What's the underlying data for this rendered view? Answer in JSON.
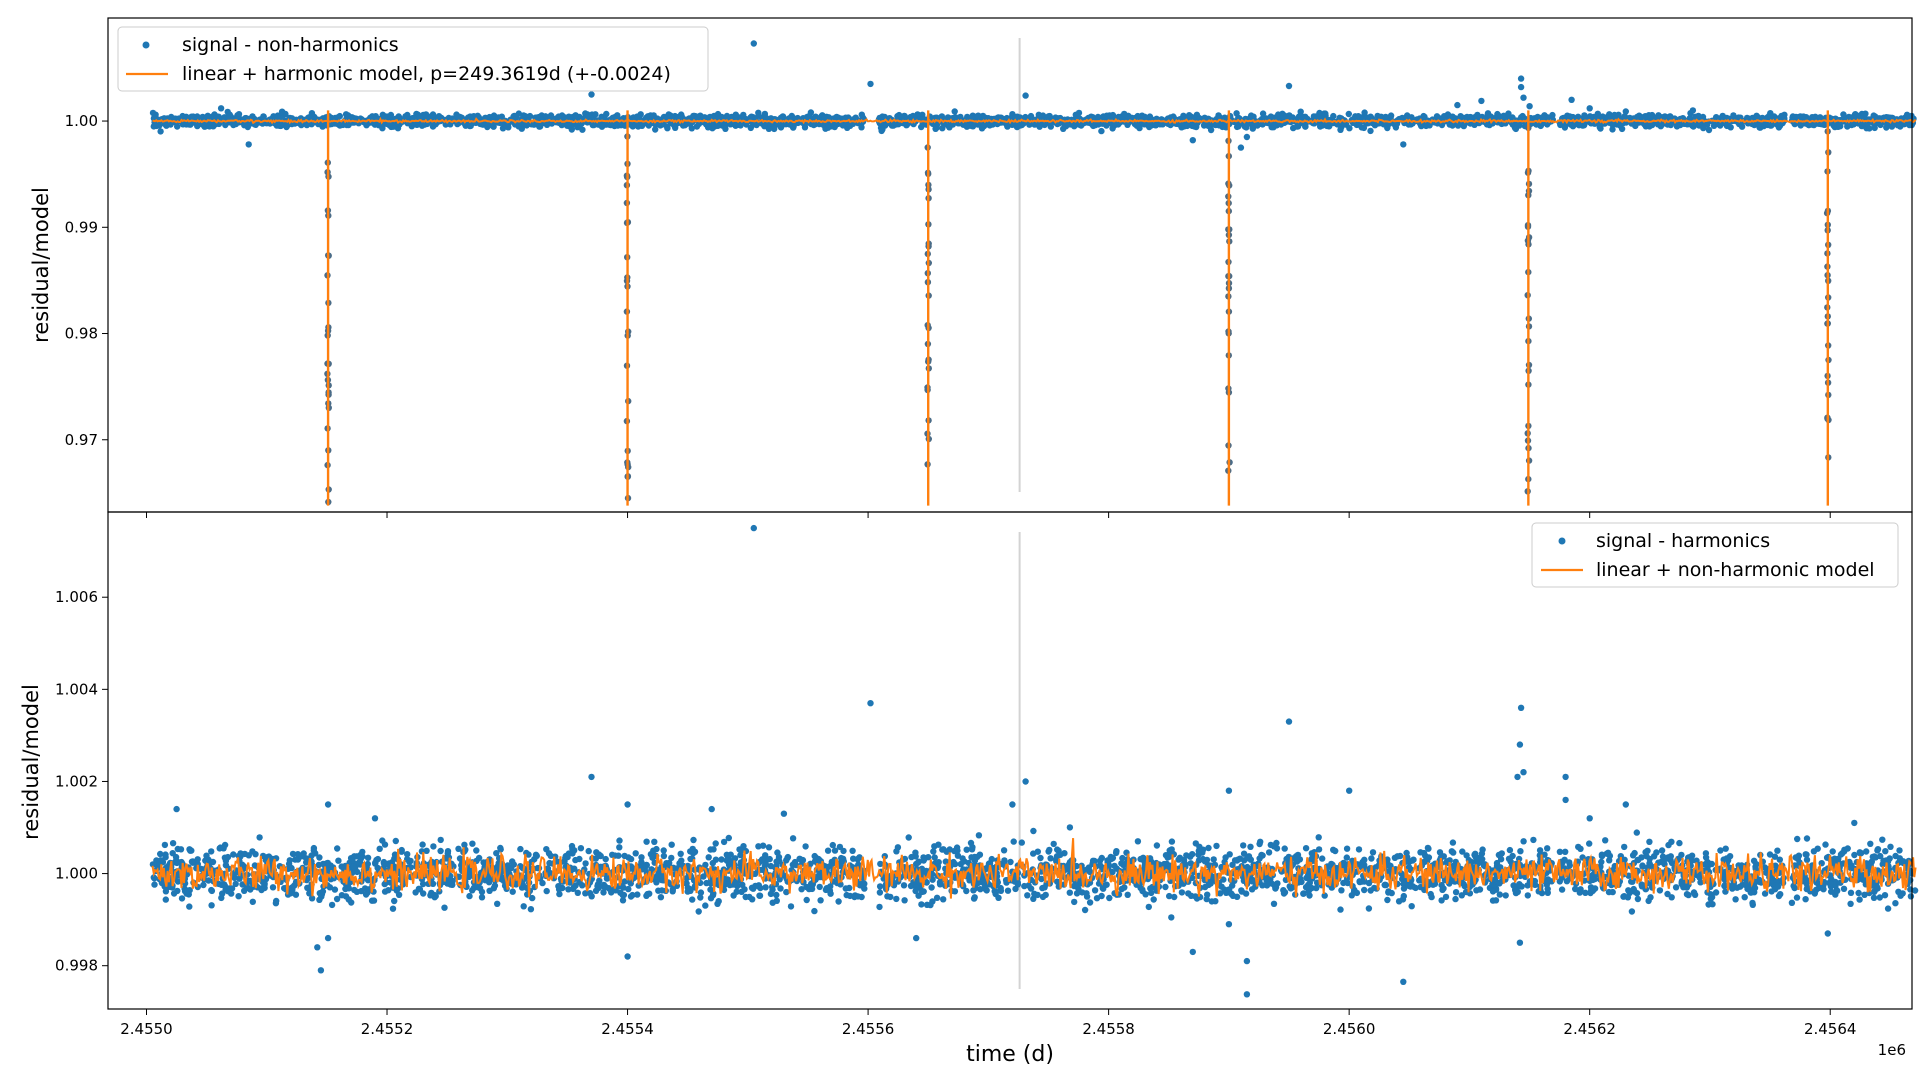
{
  "figure": {
    "xlabel": "time (d)",
    "x_offset_label": "1e6"
  },
  "colors": {
    "signal": "#1f77b4",
    "model": "#ff7f0e",
    "marker_line": "#d3d3d3",
    "axes": "#000000",
    "legend_border": "#cccccc"
  },
  "chart_data": [
    {
      "type": "scatter",
      "panel": "top",
      "ylabel": "residual/model",
      "xlim": [
        2454928,
        2456428
      ],
      "ylim": [
        0.9632,
        1.0097
      ],
      "xticks": [
        2454960,
        2455160,
        2455360,
        2455560,
        2455760,
        2455960,
        2456160,
        2456360
      ],
      "xtick_labels": [
        "",
        "",
        "",
        "",
        "",
        "",
        "",
        ""
      ],
      "yticks": [
        0.97,
        0.98,
        0.99,
        1.0
      ],
      "ytick_labels": [
        "0.97",
        "0.98",
        "0.99",
        "1.00"
      ],
      "legend": {
        "position": "upper left",
        "entries": [
          {
            "label": "signal - non-harmonics",
            "marker": "dot",
            "color": "#1f77b4"
          },
          {
            "label": "linear + harmonic model, p=249.3619d (+-0.0024)",
            "marker": "line",
            "color": "#ff7f0e"
          }
        ]
      },
      "series": [
        {
          "name": "signal - non-harmonics",
          "kind": "scatter",
          "baseline": 1.0,
          "time_segments": [
            [
              2454965,
              2455557
            ],
            [
              2455569,
              2455637
            ],
            [
              2455637,
              2456130
            ],
            [
              2456135,
              2456322
            ],
            [
              2456328,
              2456431
            ]
          ],
          "dip_times": [
            2455111,
            2455360,
            2455610,
            2455860,
            2456109,
            2456358
          ],
          "dip_depth": 0.9636,
          "outliers": [
            [
              2455022,
              1.0012
            ],
            [
              2455045,
              0.9978
            ],
            [
              2455330,
              1.0025
            ],
            [
              2455465,
              1.0073
            ],
            [
              2455562,
              1.0035
            ],
            [
              2455632,
              1.0009
            ],
            [
              2455691,
              1.0024
            ],
            [
              2455830,
              0.9982
            ],
            [
              2455870,
              0.9975
            ],
            [
              2455875,
              0.9985
            ],
            [
              2455910,
              1.0033
            ],
            [
              2456005,
              0.9978
            ],
            [
              2456050,
              1.0015
            ],
            [
              2456070,
              1.0019
            ],
            [
              2456103,
              1.004
            ],
            [
              2456103,
              1.0032
            ],
            [
              2456105,
              1.0022
            ],
            [
              2456110,
              1.0014
            ],
            [
              2456145,
              1.002
            ],
            [
              2456160,
              1.0012
            ],
            [
              2456190,
              1.0009
            ]
          ]
        },
        {
          "name": "linear + harmonic model, p=249.3619d (+-0.0024)",
          "kind": "line",
          "baseline": 1.0,
          "dip_times": [
            2455111,
            2455360,
            2455610,
            2455860,
            2456109,
            2456358
          ],
          "dip_depth": 0.9638
        }
      ],
      "vertical_marker_x": 2455686
    },
    {
      "type": "scatter",
      "panel": "bottom",
      "ylabel": "residual/model",
      "xlim": [
        2454928,
        2456428
      ],
      "ylim": [
        0.99706,
        1.00785
      ],
      "xticks": [
        2454960,
        2455160,
        2455360,
        2455560,
        2455760,
        2455960,
        2456160,
        2456360
      ],
      "xtick_labels": [
        "2.4550",
        "2.4552",
        "2.4554",
        "2.4556",
        "2.4558",
        "2.4560",
        "2.4562",
        "2.4564"
      ],
      "yticks": [
        0.998,
        1.0,
        1.002,
        1.004,
        1.006
      ],
      "ytick_labels": [
        "0.998",
        "1.000",
        "1.002",
        "1.004",
        "1.006"
      ],
      "legend": {
        "position": "upper right",
        "entries": [
          {
            "label": "signal - harmonics",
            "marker": "dot",
            "color": "#1f77b4"
          },
          {
            "label": "linear + non-harmonic model",
            "marker": "line",
            "color": "#ff7f0e"
          }
        ]
      },
      "series": [
        {
          "name": "signal - harmonics",
          "kind": "scatter",
          "baseline": 1.0,
          "time_segments": [
            [
              2454965,
              2455557
            ],
            [
              2455569,
              2455637
            ],
            [
              2455637,
              2456130
            ],
            [
              2456135,
              2456322
            ],
            [
              2456328,
              2456431
            ]
          ],
          "outliers": [
            [
              2454985,
              1.0014
            ],
            [
              2455102,
              0.9984
            ],
            [
              2455105,
              0.9979
            ],
            [
              2455111,
              1.0015
            ],
            [
              2455111,
              0.9986
            ],
            [
              2455150,
              1.0012
            ],
            [
              2455330,
              1.0021
            ],
            [
              2455360,
              1.0015
            ],
            [
              2455360,
              0.9982
            ],
            [
              2455465,
              1.0075
            ],
            [
              2455430,
              1.0014
            ],
            [
              2455490,
              1.0013
            ],
            [
              2455562,
              1.0037
            ],
            [
              2455600,
              0.9986
            ],
            [
              2455691,
              1.002
            ],
            [
              2455680,
              1.0015
            ],
            [
              2455830,
              0.9983
            ],
            [
              2455875,
              0.9981
            ],
            [
              2455875,
              0.99738
            ],
            [
              2455860,
              1.0018
            ],
            [
              2455860,
              0.9989
            ],
            [
              2455910,
              1.0033
            ],
            [
              2455960,
              1.0018
            ],
            [
              2456005,
              0.99765
            ],
            [
              2456103,
              1.0036
            ],
            [
              2456102,
              1.0028
            ],
            [
              2456100,
              1.0021
            ],
            [
              2456105,
              1.0022
            ],
            [
              2456102,
              0.9985
            ],
            [
              2456140,
              1.0021
            ],
            [
              2456140,
              1.0016
            ],
            [
              2456160,
              1.0012
            ],
            [
              2456190,
              1.0015
            ],
            [
              2456380,
              1.0011
            ],
            [
              2456358,
              0.9987
            ]
          ]
        },
        {
          "name": "linear + non-harmonic model",
          "kind": "line",
          "baseline": 1.0,
          "noise_amplitude": 0.0004
        }
      ],
      "vertical_marker_x": 2455686
    }
  ]
}
